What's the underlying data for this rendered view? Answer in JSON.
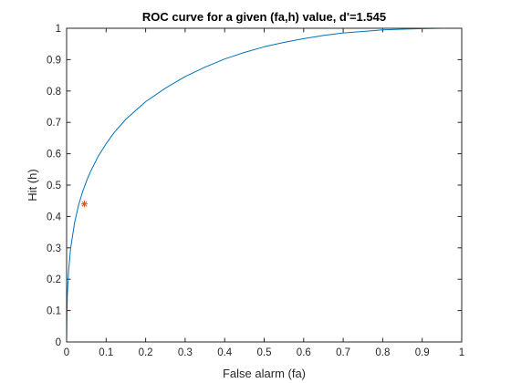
{
  "chart_data": {
    "type": "line",
    "title": "ROC curve for a given (fa,h) value, d'=1.545",
    "xlabel": "False alarm (fa)",
    "ylabel": "Hit (h)",
    "xlim": [
      0,
      1
    ],
    "ylim": [
      0,
      1
    ],
    "xticks": [
      0,
      0.1,
      0.2,
      0.3,
      0.4,
      0.5,
      0.6,
      0.7,
      0.8,
      0.9,
      1
    ],
    "yticks": [
      0,
      0.1,
      0.2,
      0.3,
      0.4,
      0.5,
      0.6,
      0.7,
      0.8,
      0.9,
      1
    ],
    "xtick_labels": [
      "0",
      "0.1",
      "0.2",
      "0.3",
      "0.4",
      "0.5",
      "0.6",
      "0.7",
      "0.8",
      "0.9",
      "1"
    ],
    "ytick_labels": [
      "0",
      "0.1",
      "0.2",
      "0.3",
      "0.4",
      "0.5",
      "0.6",
      "0.7",
      "0.8",
      "0.9",
      "1"
    ],
    "grid": false,
    "box": true,
    "series": [
      {
        "color": "#0072BD",
        "x": [
          0,
          0.001,
          0.002,
          0.005,
          0.01,
          0.02,
          0.03,
          0.04,
          0.05,
          0.06,
          0.08,
          0.1,
          0.12,
          0.15,
          0.2,
          0.25,
          0.3,
          0.35,
          0.4,
          0.45,
          0.5,
          0.55,
          0.6,
          0.65,
          0.7,
          0.75,
          0.8,
          0.85,
          0.9,
          0.95,
          0.98,
          1
        ],
        "y": [
          0,
          0.105,
          0.156,
          0.225,
          0.297,
          0.379,
          0.435,
          0.477,
          0.512,
          0.542,
          0.592,
          0.632,
          0.667,
          0.71,
          0.766,
          0.809,
          0.846,
          0.876,
          0.902,
          0.923,
          0.941,
          0.955,
          0.967,
          0.977,
          0.985,
          0.99,
          0.995,
          0.997,
          0.999,
          1.0,
          1.0,
          1.0
        ]
      },
      {
        "color": "#D95319",
        "marker": "asterisk",
        "x": [
          0.045
        ],
        "y": [
          0.44
        ]
      }
    ]
  }
}
